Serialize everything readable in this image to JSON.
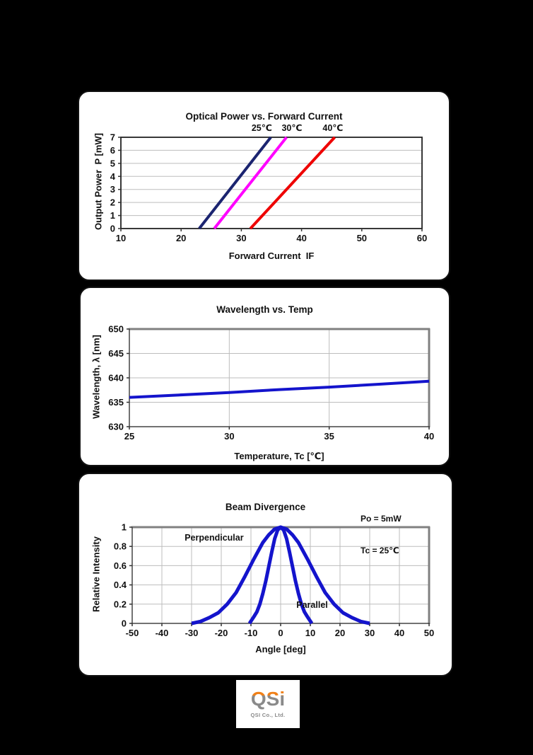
{
  "page": {
    "background": "#000000"
  },
  "chart_data": [
    {
      "type": "line",
      "title": "Optical Power vs. Forward Current",
      "xlabel": "Forward Current  IF",
      "ylabel": "Output Power  P [mW]",
      "xlim": [
        10,
        60
      ],
      "ylim": [
        0,
        7
      ],
      "xticks": [
        10,
        20,
        30,
        40,
        50,
        60
      ],
      "yticks": [
        0,
        1,
        2,
        3,
        4,
        5,
        6,
        7
      ],
      "grid": "horizontal",
      "frame": "plain",
      "legend_position": "labels-above-lines",
      "series": [
        {
          "name": "25℃",
          "color": "#1b2470",
          "line_width": 4,
          "x": [
            23.0,
            34.9
          ],
          "y": [
            0,
            7
          ],
          "label": {
            "x": 33.4,
            "y": 7.5
          }
        },
        {
          "name": "30℃",
          "color": "#ff00ff",
          "line_width": 4,
          "x": [
            25.5,
            37.5
          ],
          "y": [
            0,
            7
          ],
          "label": {
            "x": 38.4,
            "y": 7.5
          }
        },
        {
          "name": "40℃",
          "color": "#ee0000",
          "line_width": 4,
          "x": [
            31.5,
            45.5
          ],
          "y": [
            0,
            7
          ],
          "label": {
            "x": 45.2,
            "y": 7.5
          }
        }
      ]
    },
    {
      "type": "line",
      "title": "Wavelength vs. Temp",
      "xlabel": "Temperature, Tc [℃]",
      "ylabel": "Wavelength, λ [nm]",
      "xlim": [
        25,
        40
      ],
      "ylim": [
        630,
        650
      ],
      "xticks": [
        25,
        30,
        35,
        40
      ],
      "yticks": [
        630,
        635,
        640,
        645,
        650
      ],
      "grid": "both",
      "frame": "shadow",
      "series": [
        {
          "name": "wavelength",
          "color": "#1414cc",
          "line_width": 4,
          "x": [
            25,
            27.5,
            30,
            32.5,
            35,
            37.5,
            40
          ],
          "y": [
            636.0,
            636.5,
            637.0,
            637.6,
            638.1,
            638.7,
            639.3
          ]
        }
      ]
    },
    {
      "type": "line",
      "title": "Beam Divergence",
      "annotations": [
        "Po = 5mW",
        "Tc = 25℃"
      ],
      "xlabel": "Angle [deg]",
      "ylabel": "Relative Intensity",
      "xlim": [
        -50,
        50
      ],
      "ylim": [
        0,
        1
      ],
      "xticks": [
        -50,
        -40,
        -30,
        -20,
        -10,
        0,
        10,
        20,
        30,
        40,
        50
      ],
      "yticks": [
        0,
        0.2,
        0.4,
        0.6,
        0.8,
        1
      ],
      "grid": "both",
      "frame": "shadow",
      "series": [
        {
          "name": "Perpendicular",
          "color": "#1414cc",
          "line_width": 5,
          "x": [
            -30,
            -27,
            -24,
            -21,
            -18,
            -15,
            -12,
            -9,
            -6,
            -4,
            -2,
            0,
            2,
            4,
            6,
            9,
            12,
            15,
            18,
            21,
            24,
            27,
            30
          ],
          "y": [
            0,
            0.02,
            0.06,
            0.11,
            0.2,
            0.32,
            0.49,
            0.67,
            0.84,
            0.92,
            0.98,
            1,
            0.98,
            0.92,
            0.84,
            0.67,
            0.49,
            0.32,
            0.2,
            0.11,
            0.06,
            0.02,
            0
          ],
          "label": {
            "x": -22.4,
            "y": 0.86
          }
        },
        {
          "name": "Parallel",
          "color": "#1414cc",
          "line_width": 5,
          "x": [
            -10.5,
            -9,
            -8,
            -7,
            -6,
            -5,
            -4,
            -3,
            -2,
            -1,
            0,
            1,
            2,
            3,
            4,
            5,
            6,
            7,
            8,
            9,
            10.5
          ],
          "y": [
            0,
            0.07,
            0.12,
            0.2,
            0.31,
            0.44,
            0.59,
            0.74,
            0.88,
            0.97,
            1,
            0.97,
            0.88,
            0.74,
            0.59,
            0.44,
            0.31,
            0.2,
            0.12,
            0.07,
            0
          ],
          "label": {
            "x": 10.6,
            "y": 0.16
          }
        }
      ]
    }
  ],
  "logo": {
    "mark": "QSi",
    "company": "QSI Co., Ltd.",
    "orange": "#f08018",
    "gray": "#8a8a8a"
  }
}
